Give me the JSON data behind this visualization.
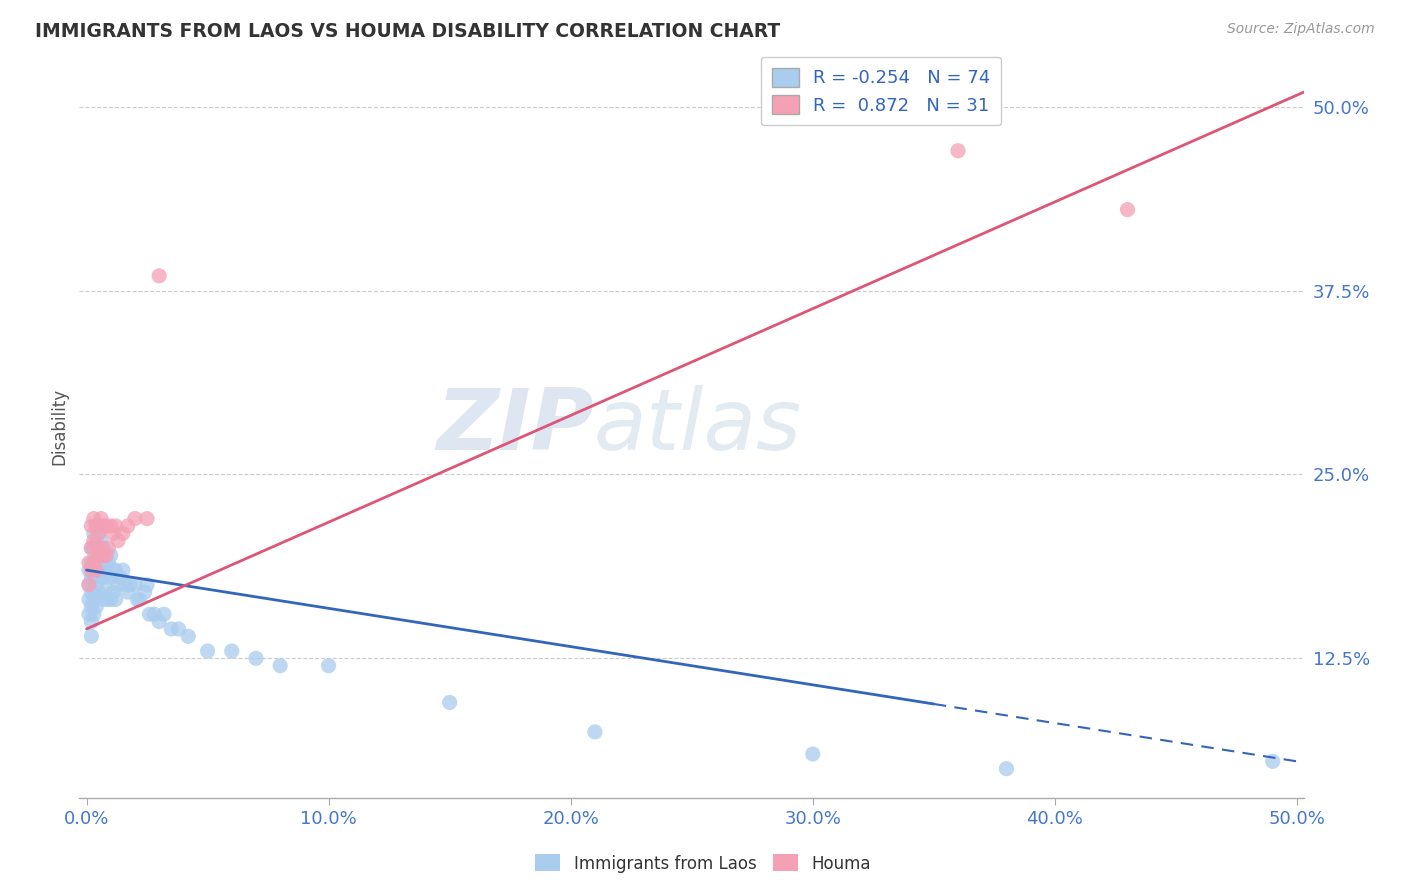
{
  "title": "IMMIGRANTS FROM LAOS VS HOUMA DISABILITY CORRELATION CHART",
  "source_text": "Source: ZipAtlas.com",
  "ylabel": "Disability",
  "xlim": [
    -0.003,
    0.503
  ],
  "ylim": [
    0.03,
    0.535
  ],
  "xticks": [
    0.0,
    0.1,
    0.2,
    0.3,
    0.4,
    0.5
  ],
  "xticklabels": [
    "0.0%",
    "10.0%",
    "20.0%",
    "30.0%",
    "40.0%",
    "50.0%"
  ],
  "yticks": [
    0.125,
    0.25,
    0.375,
    0.5
  ],
  "yticklabels": [
    "12.5%",
    "25.0%",
    "37.5%",
    "50.0%"
  ],
  "blue_R": -0.254,
  "blue_N": 74,
  "pink_R": 0.872,
  "pink_N": 31,
  "blue_color": "#aaccee",
  "pink_color": "#f4a0b5",
  "blue_line_color": "#3366bb",
  "pink_line_color": "#dd5577",
  "watermark_ZIP": "ZIP",
  "watermark_atlas": "atlas",
  "background_color": "#ffffff",
  "blue_scatter_x": [
    0.001,
    0.001,
    0.001,
    0.001,
    0.002,
    0.002,
    0.002,
    0.002,
    0.002,
    0.002,
    0.002,
    0.003,
    0.003,
    0.003,
    0.003,
    0.003,
    0.003,
    0.004,
    0.004,
    0.004,
    0.004,
    0.004,
    0.005,
    0.005,
    0.005,
    0.005,
    0.006,
    0.006,
    0.006,
    0.007,
    0.007,
    0.007,
    0.007,
    0.008,
    0.008,
    0.008,
    0.009,
    0.009,
    0.009,
    0.01,
    0.01,
    0.01,
    0.011,
    0.011,
    0.012,
    0.012,
    0.013,
    0.014,
    0.015,
    0.016,
    0.017,
    0.018,
    0.02,
    0.021,
    0.022,
    0.024,
    0.025,
    0.026,
    0.028,
    0.03,
    0.032,
    0.035,
    0.038,
    0.042,
    0.05,
    0.06,
    0.07,
    0.08,
    0.1,
    0.15,
    0.21,
    0.3,
    0.38,
    0.49
  ],
  "blue_scatter_y": [
    0.185,
    0.175,
    0.165,
    0.155,
    0.2,
    0.19,
    0.18,
    0.17,
    0.16,
    0.15,
    0.14,
    0.21,
    0.2,
    0.19,
    0.18,
    0.165,
    0.155,
    0.215,
    0.205,
    0.195,
    0.175,
    0.16,
    0.21,
    0.2,
    0.185,
    0.17,
    0.205,
    0.195,
    0.18,
    0.2,
    0.19,
    0.18,
    0.165,
    0.195,
    0.185,
    0.17,
    0.19,
    0.18,
    0.165,
    0.195,
    0.18,
    0.165,
    0.185,
    0.17,
    0.185,
    0.165,
    0.175,
    0.18,
    0.185,
    0.175,
    0.17,
    0.175,
    0.175,
    0.165,
    0.165,
    0.17,
    0.175,
    0.155,
    0.155,
    0.15,
    0.155,
    0.145,
    0.145,
    0.14,
    0.13,
    0.13,
    0.125,
    0.12,
    0.12,
    0.095,
    0.075,
    0.06,
    0.05,
    0.055
  ],
  "pink_scatter_x": [
    0.001,
    0.001,
    0.002,
    0.002,
    0.002,
    0.003,
    0.003,
    0.003,
    0.004,
    0.004,
    0.004,
    0.005,
    0.005,
    0.006,
    0.006,
    0.007,
    0.007,
    0.008,
    0.008,
    0.009,
    0.01,
    0.011,
    0.012,
    0.013,
    0.015,
    0.017,
    0.02,
    0.025,
    0.03,
    0.36,
    0.43
  ],
  "pink_scatter_y": [
    0.19,
    0.175,
    0.215,
    0.2,
    0.185,
    0.22,
    0.205,
    0.19,
    0.215,
    0.2,
    0.185,
    0.21,
    0.195,
    0.22,
    0.2,
    0.215,
    0.195,
    0.215,
    0.195,
    0.2,
    0.215,
    0.21,
    0.215,
    0.205,
    0.21,
    0.215,
    0.22,
    0.22,
    0.385,
    0.47,
    0.43
  ],
  "blue_line_x": [
    0.0,
    0.5
  ],
  "blue_line_y": [
    0.185,
    0.055
  ],
  "pink_line_x": [
    0.0,
    0.503
  ],
  "pink_line_y": [
    0.145,
    0.51
  ]
}
